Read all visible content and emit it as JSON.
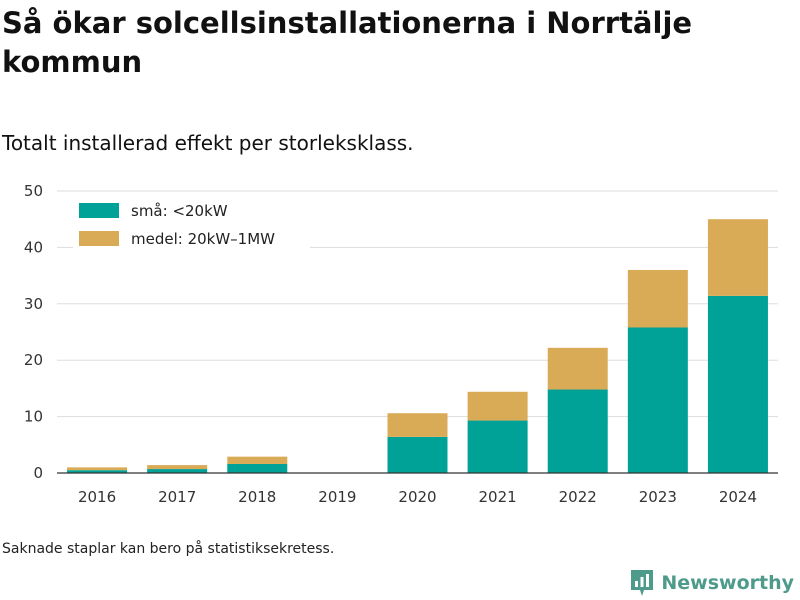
{
  "header": {
    "title": "Så ökar solcellsinstallationerna i Norrtälje kommun",
    "subtitle": "Totalt installerad effekt per storleksklass."
  },
  "chart_data": {
    "type": "bar",
    "stacked": true,
    "categories": [
      "2016",
      "2017",
      "2018",
      "2019",
      "2020",
      "2021",
      "2022",
      "2023",
      "2024"
    ],
    "series": [
      {
        "name": "små: <20kW",
        "color": "#00a197",
        "values": [
          0.5,
          0.7,
          1.6,
          null,
          6.4,
          9.3,
          14.8,
          25.8,
          31.4
        ]
      },
      {
        "name": "medel: 20kW–1MW",
        "color": "#d9ab56",
        "values": [
          0.5,
          0.7,
          1.3,
          null,
          4.2,
          5.1,
          7.4,
          10.2,
          13.6
        ]
      }
    ],
    "ylim": [
      0,
      50
    ],
    "yticks": [
      0,
      10,
      20,
      30,
      40,
      50
    ],
    "grid": true,
    "legend_position": "top-left"
  },
  "footnote": "Saknade staplar kan bero på statistiksekretess.",
  "brand": {
    "name": "Newsworthy",
    "color": "#4e9a8b",
    "icon": "newsworthy-logo-icon"
  }
}
